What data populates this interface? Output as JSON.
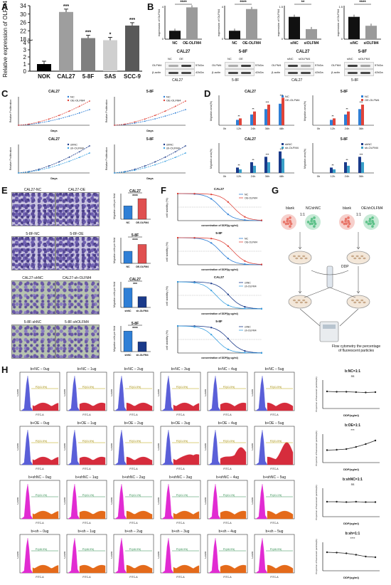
{
  "panels": {
    "A": "A",
    "B": "B",
    "C": "C",
    "D": "D",
    "E": "E",
    "F": "F",
    "G": "G",
    "H": "H"
  },
  "panel_a": {
    "ylabel": "Relative expression of OLFM4",
    "yticks": [
      "0",
      "1",
      "2",
      "3",
      "4",
      "18",
      "22",
      "26",
      "30",
      "34"
    ],
    "categories": [
      "NOK",
      "CAL27",
      "5-8F",
      "SAS",
      "SCC-9"
    ],
    "values": [
      1.0,
      31.0,
      18.5,
      17.5,
      24.5
    ],
    "sig": [
      "",
      "***",
      "***",
      "*",
      "***"
    ],
    "colors": [
      "#000000",
      "#9e9e9e",
      "#7f7f7f",
      "#cfcfcf",
      "#595959"
    ]
  },
  "panel_b": {
    "charts": [
      {
        "ylabel": "expression of OLFM4",
        "title": "CAL27",
        "categories": [
          "NC",
          "OE-OLFM4"
        ],
        "values": [
          1,
          3.8
        ],
        "ylim_top": "4",
        "sig": "****"
      },
      {
        "ylabel": "expression of OLFM4",
        "title": "5-8F",
        "categories": [
          "NC",
          "OE-OLFM4"
        ],
        "values": [
          1,
          3.6
        ],
        "ylim_top": "4",
        "sig": "****"
      },
      {
        "ylabel": "expression of OLFM4",
        "title": "CAL27",
        "categories": [
          "siNC",
          "siOLFM4"
        ],
        "values": [
          1.0,
          0.45
        ],
        "ylim_top": "1.5",
        "sig": "**"
      },
      {
        "ylabel": "expression of OLFM4",
        "title": "5-8F",
        "categories": [
          "siNC",
          "siOLFM4"
        ],
        "values": [
          1.0,
          0.6
        ],
        "ylim_top": "1.5",
        "sig": "****"
      }
    ],
    "blots": [
      {
        "lanes": [
          "NC",
          "OE"
        ],
        "rows": [
          "OLFM4",
          "β-actin"
        ],
        "kda": [
          "57kDa",
          "42kDa"
        ],
        "cell": "CAL27"
      },
      {
        "lanes": [
          "NC",
          "OE"
        ],
        "rows": [
          "OLFM4",
          "β-actin"
        ],
        "kda": [
          "57kDa",
          "42kDa"
        ],
        "cell": "5-8F"
      },
      {
        "lanes": [
          "siNC",
          "siOLFM4"
        ],
        "rows": [
          "OLFM4",
          "β-actin"
        ],
        "kda": [
          "57kDa",
          "42kDa"
        ],
        "cell": "CAL27"
      },
      {
        "lanes": [
          "siNC",
          "siOLFM4"
        ],
        "rows": [
          "OLFM4",
          "β-actin"
        ],
        "kda": [
          "57kDa",
          "42kDa"
        ],
        "cell": "5-8F"
      }
    ]
  },
  "panel_c": {
    "charts": [
      {
        "title": "CAL27",
        "legend": [
          "NC",
          "OE-OLFM4"
        ],
        "xlabel": "Days",
        "ylabel": "Relative Proliferation"
      },
      {
        "title": "5-8F",
        "legend": [
          "NC",
          "OE-OLFM4"
        ],
        "xlabel": "Days",
        "ylabel": "Relative Proliferation"
      },
      {
        "title": "CAL27",
        "legend": [
          "shNC",
          "sh-OLFM4"
        ],
        "xlabel": "Days",
        "ylabel": "Relative Proliferation"
      },
      {
        "title": "5-8F",
        "legend": [
          "shNC",
          "sh-OLFM4"
        ],
        "xlabel": "Days",
        "ylabel": "Relative Proliferation"
      }
    ]
  },
  "panel_d": {
    "charts": [
      {
        "title": "CAL27",
        "legend": [
          "NC",
          "OE-OLFM4"
        ],
        "xcats": [
          "0h",
          "12h",
          "24h",
          "36h",
          "48h"
        ],
        "ylabel": "Migration area(%)"
      },
      {
        "title": "5-8F",
        "legend": [
          "NC",
          "OE-OLFM4"
        ],
        "xcats": [
          "0h",
          "12h",
          "24h",
          "36h"
        ],
        "ylabel": "Migration area(%)"
      },
      {
        "title": "CAL27",
        "legend": [
          "shNC",
          "sh-OLFM4"
        ],
        "xcats": [
          "0h",
          "12h",
          "24h",
          "36h",
          "48h"
        ],
        "ylabel": "Migration area(%)"
      },
      {
        "title": "5-8F",
        "legend": [
          "shNC",
          "sh-OLFM4"
        ],
        "xcats": [
          "0h",
          "12h",
          "24h",
          "36h"
        ],
        "ylabel": "Migration area(%)"
      }
    ]
  },
  "panel_e": {
    "rows": [
      {
        "left": "CAL27-NC",
        "right": "CAL27-OE",
        "chart_title": "CAL27",
        "cats": [
          "NC",
          "OE-OLFM4"
        ],
        "values": [
          55,
          85
        ],
        "sig": "****"
      },
      {
        "left": "5-8F-NC",
        "right": "5-8F-OE",
        "chart_title": "5-8F",
        "cats": [
          "NC",
          "OE-OLFM4"
        ],
        "values": [
          50,
          78
        ],
        "sig": "****"
      },
      {
        "left": "CAL27-shNC",
        "right": "CAL27-sh-OLFM4",
        "chart_title": "CAL27",
        "cats": [
          "shNC",
          "sh-OLFM4"
        ],
        "values": [
          80,
          45
        ],
        "sig": "***"
      },
      {
        "left": "5-8F-shNC",
        "right": "5-8F-shOLFM4",
        "chart_title": "5-8F",
        "cats": [
          "shNC",
          "sh-OLFM4"
        ],
        "values": [
          85,
          40
        ],
        "sig": "****"
      }
    ],
    "ylabel": "Migration cells per field"
  },
  "panel_f": {
    "charts": [
      {
        "title": "CAL27",
        "legend": [
          "NC",
          "OE-OLFM4"
        ],
        "ylabel": "cell viability (%)",
        "xlabel": "concentration of DDP(lg ug/ml)"
      },
      {
        "title": "5-8F",
        "legend": [
          "NC",
          "OE-OLFM4"
        ],
        "ylabel": "cell viability (%)",
        "xlabel": "concentration of DDP(lg ug/ml)"
      },
      {
        "title": "CAL27",
        "legend": [
          "shNC",
          "sh-OLFM4"
        ],
        "ylabel": "cell viability (%)",
        "xlabel": "concentration of DDP(lg ug/ml)"
      },
      {
        "title": "5-8F",
        "legend": [
          "shNC",
          "sh-OLFM4"
        ],
        "ylabel": "cell viability (%)",
        "xlabel": "concentration of DDP(lg ug/ml)"
      }
    ]
  },
  "panel_g": {
    "blank1": "blank",
    "group1": "NC/shNC",
    "blank2": "blank",
    "group2": "OE/shOLFM4",
    "ratio": "1:1",
    "drug": "DDP",
    "caption": "Flow cytometry the percentage of fluorescent particles",
    "colors": {
      "red": "#e8766a",
      "green": "#5fc28a",
      "dish": "#f3e7d9"
    }
  },
  "panel_h": {
    "rows": [
      {
        "titles": [
          "b+NC – 0ug",
          "b+NC – 1ug",
          "b+NC – 2ug",
          "b+NC – 3ug",
          "b+NC – 4ug",
          "b+NC – 5ug"
        ],
        "gate": "P2(41.5%)",
        "color": "#d62c3c",
        "side_title": "b:NC=1:1",
        "side_sig": "ns",
        "trend": [
          48,
          47,
          47,
          46,
          45,
          46
        ]
      },
      {
        "titles": [
          "b+OE – 0ug",
          "b+OE – 1ug",
          "b+OE – 2ug",
          "b+OE – 3ug",
          "b+OE – 4ug",
          "b+OE – 5ug"
        ],
        "gate": "P2(31.5%)",
        "color": "#d62c3c",
        "side_title": "b:OE=1:1",
        "side_sig": "***",
        "trend": [
          35,
          36,
          38,
          44,
          52,
          62
        ]
      },
      {
        "titles": [
          "b+shNC – 0ug",
          "b+shNC – 1ug",
          "b+shNC – 2ug",
          "b+shNC – 3ug",
          "b+shNC – 4ug",
          "b+shNC – 5ug"
        ],
        "gate": "P1(41.1%)",
        "color": "#e46a1a",
        "side_title": "b:shNC=1:1",
        "side_sig": "ns",
        "trend": [
          42,
          42,
          41,
          42,
          41,
          41
        ]
      },
      {
        "titles": [
          "b+sh – 0ug",
          "b+sh – 1ug",
          "b+sh – 2ug",
          "b+sh – 3ug",
          "b+sh – 4ug",
          "b+sh – 5ug"
        ],
        "gate": "P1(46.9%)",
        "color": "#e46a1a",
        "side_title": "b:sh=1:1",
        "side_sig": "****",
        "trend": [
          52,
          51,
          49,
          45,
          40,
          38
        ]
      }
    ],
    "side_xlabel": "DDP(ug/ml)",
    "side_ylabel": "Proportion of fluorescent particles(%)",
    "xaxis": "FITC-A",
    "yaxis": "Count"
  }
}
